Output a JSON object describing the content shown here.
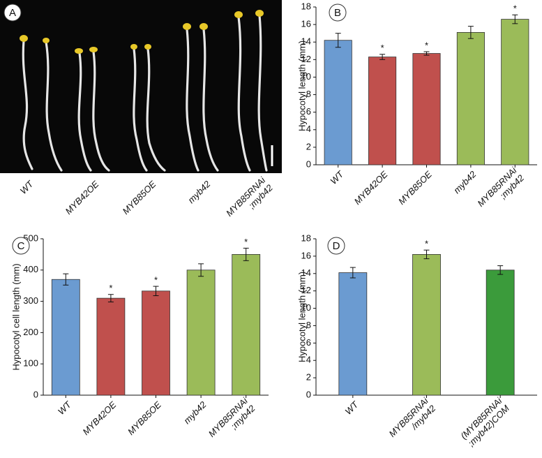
{
  "panel_a": {
    "label": "A",
    "categories": [
      [
        "WT"
      ],
      [
        "MYB42OE"
      ],
      [
        "MYB85OE"
      ],
      [
        "myb42"
      ],
      [
        "MYB85RNAi",
        ";myb42"
      ]
    ]
  },
  "chart_data": [
    {
      "type": "bar",
      "label": "B",
      "y_label": "Hypocotyl length (mm)",
      "categories": [
        [
          "WT"
        ],
        [
          "MYB42OE"
        ],
        [
          "MYB85OE"
        ],
        [
          "myb42"
        ],
        [
          "MYB85RNAi",
          ";myb42"
        ]
      ],
      "values": [
        14.2,
        12.3,
        12.7,
        15.1,
        16.6
      ],
      "errors": [
        0.8,
        0.3,
        0.2,
        0.7,
        0.5
      ],
      "colors": [
        "#6b9bd1",
        "#c0504d",
        "#c0504d",
        "#9bbb59",
        "#9bbb59"
      ],
      "annotations": [
        {
          "index": 1,
          "text": "*"
        },
        {
          "index": 2,
          "text": "*"
        },
        {
          "index": 4,
          "text": "*"
        }
      ],
      "ylim": [
        0,
        18
      ],
      "yticks": [
        0,
        2,
        4,
        6,
        8,
        10,
        12,
        14,
        16,
        18
      ]
    },
    {
      "type": "bar",
      "label": "C",
      "y_label": "Hypocotyl cell length (mm)",
      "categories": [
        [
          "WT"
        ],
        [
          "MYB42OE"
        ],
        [
          "MYB85OE"
        ],
        [
          "myb42"
        ],
        [
          "MYB85RNAi",
          ";myb42"
        ]
      ],
      "values": [
        370,
        310,
        333,
        400,
        450
      ],
      "errors": [
        18,
        12,
        15,
        20,
        20
      ],
      "colors": [
        "#6b9bd1",
        "#c0504d",
        "#c0504d",
        "#9bbb59",
        "#9bbb59"
      ],
      "annotations": [
        {
          "index": 1,
          "text": "*"
        },
        {
          "index": 2,
          "text": "*"
        },
        {
          "index": 4,
          "text": "*"
        }
      ],
      "ylim": [
        0,
        500
      ],
      "yticks": [
        0,
        100,
        200,
        300,
        400,
        500
      ]
    },
    {
      "type": "bar",
      "label": "D",
      "y_label": "Hypocotyl length (mm)",
      "categories": [
        [
          "WT"
        ],
        [
          "MYB85RNAi",
          "/myb42"
        ],
        [
          "(MYB85RNAi",
          ";myb42)COM"
        ]
      ],
      "values": [
        14.1,
        16.2,
        14.4
      ],
      "errors": [
        0.6,
        0.5,
        0.5
      ],
      "colors": [
        "#6b9bd1",
        "#9bbb59",
        "#3b9b3b"
      ],
      "annotations": [
        {
          "index": 1,
          "text": "*"
        }
      ],
      "ylim": [
        0,
        18
      ],
      "yticks": [
        0,
        2,
        4,
        6,
        8,
        10,
        12,
        14,
        16,
        18
      ]
    }
  ]
}
